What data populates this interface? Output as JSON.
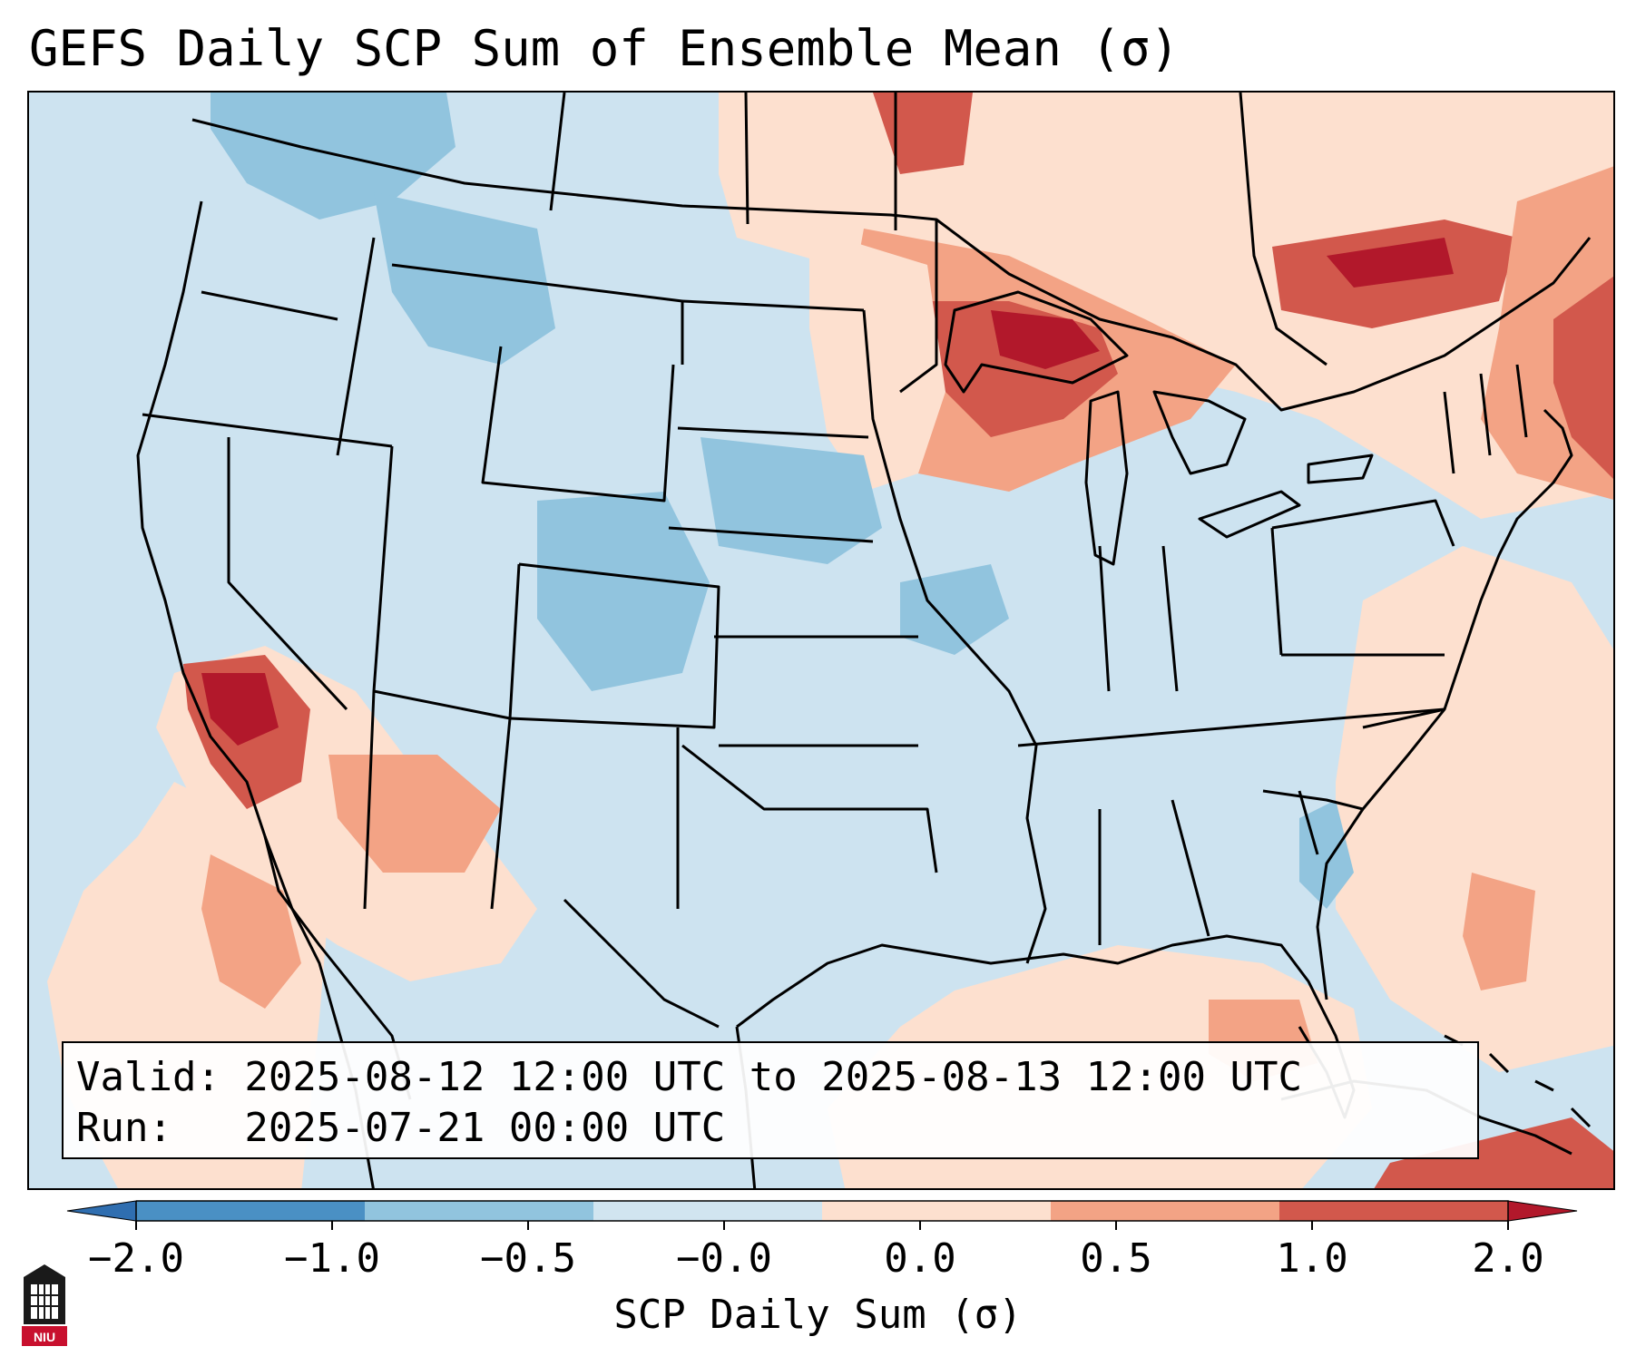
{
  "title": "GEFS Daily SCP Sum of Ensemble Mean (σ)",
  "info": {
    "valid_line": "Valid: 2025-08-12 12:00 UTC to 2025-08-13 12:00 UTC",
    "run_line": "Run:   2025-07-21 00:00 UTC"
  },
  "colorbar": {
    "label": "SCP Daily Sum (σ)",
    "tick_labels": [
      "−2.0",
      "−1.0",
      "−0.5",
      "−0.0",
      "0.0",
      "0.5",
      "1.0",
      "2.0"
    ],
    "bin_colors": [
      "#4a90c4",
      "#91c4de",
      "#d1e5f0",
      "#fde0cf",
      "#f3a385",
      "#d2584c"
    ],
    "under_color": "#2f6eb0",
    "over_color": "#b2182b"
  },
  "logo": {
    "text": "NIU",
    "color": "#c8102e"
  },
  "map_colors": {
    "ocean": "#cde3f0",
    "neutral_blue": "#d1e5f0",
    "light_red": "#fde0cf",
    "mid_red": "#f3a385",
    "strong_red": "#d2584c",
    "extreme_red": "#b2182b",
    "light_blue": "#91c4de"
  }
}
